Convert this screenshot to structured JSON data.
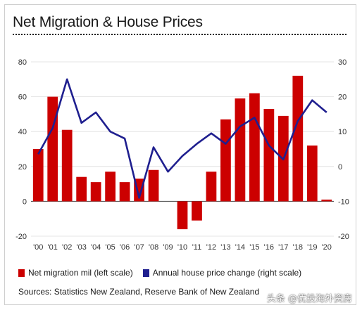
{
  "chart_data": {
    "type": "bar+line",
    "title": "Net Migration & House Prices",
    "categories": [
      "'00",
      "'01",
      "'02",
      "'03",
      "'04",
      "'05",
      "'06",
      "'07",
      "'08",
      "'09",
      "'10",
      "'11",
      "'12",
      "'13",
      "'14",
      "'15",
      "'16",
      "'17",
      "'18",
      "'19",
      "'20"
    ],
    "series": [
      {
        "name": "Net migration mil (left scale)",
        "type": "bar",
        "axis": "left",
        "color": "#cc0000",
        "values": [
          30,
          60,
          41,
          14,
          11,
          17,
          11,
          13,
          18,
          0,
          -16,
          -11,
          17,
          47,
          59,
          62,
          53,
          49,
          72,
          32,
          1
        ]
      },
      {
        "name": "Annual house price change (right scale)",
        "type": "line",
        "axis": "right",
        "color": "#1f1f8f",
        "values": [
          3.5,
          11,
          25,
          12.5,
          15.5,
          10,
          8,
          -9,
          5.5,
          -1.5,
          3,
          6.5,
          9.5,
          6.5,
          11.5,
          14,
          6,
          2,
          13,
          19,
          15.5
        ]
      }
    ],
    "y_left": {
      "min": -20,
      "max": 80,
      "ticks": [
        -20,
        0,
        20,
        40,
        60,
        80
      ]
    },
    "y_right": {
      "min": -20,
      "max": 30,
      "ticks": [
        -20,
        -10,
        0,
        10,
        20,
        30
      ]
    },
    "legend_position": "bottom"
  },
  "legend": {
    "bar_label": "Net migration mil (left scale)",
    "line_label": "Annual house price change (right scale)"
  },
  "source": "Sources:  Statistics New Zealand, Reserve Bank of New Zealand",
  "watermark": "头条 @优投海外资房"
}
